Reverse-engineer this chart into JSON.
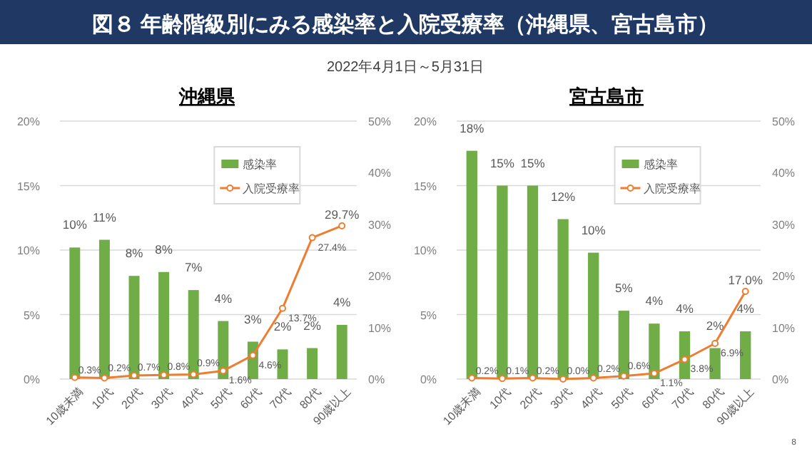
{
  "chart_data": [
    {
      "type": "other",
      "title": "図８ 年齢階級別にみる感染率と入院受療率（沖縄県、宮古島市）",
      "subtitle": "2022年4月1日～5月31日"
    },
    {
      "type": "bar",
      "title": "沖縄県",
      "categories": [
        "10歳未満",
        "10代",
        "20代",
        "30代",
        "40代",
        "50代",
        "60代",
        "70代",
        "80代",
        "90歳以上"
      ],
      "series": [
        {
          "name": "感染率",
          "type": "bar",
          "color": "#70ad47",
          "values": [
            10.2,
            10.8,
            8.0,
            8.3,
            6.9,
            4.5,
            2.9,
            2.3,
            2.4,
            4.2
          ],
          "value_labels": [
            "10%",
            "11%",
            "8%",
            "8%",
            "7%",
            "4%",
            "3%",
            "2%",
            "2%",
            "4%"
          ]
        },
        {
          "name": "入院受療率",
          "type": "line",
          "axis": "y2",
          "color": "#ed7d31",
          "marker": "circle",
          "values": [
            0.3,
            0.2,
            0.7,
            0.8,
            0.9,
            1.6,
            4.6,
            13.7,
            27.4,
            29.7
          ],
          "value_labels": [
            "0.3%",
            "0.2%",
            "0.7%",
            "0.8%",
            "0.9%",
            "1.6%",
            "4.6%",
            "13.7%",
            "27.4%",
            "29.7%"
          ]
        }
      ],
      "ylim": [
        0,
        20
      ],
      "yticks": [
        {
          "value": 0,
          "label": "0%"
        },
        {
          "value": 5,
          "label": "5%"
        },
        {
          "value": 10,
          "label": "10%"
        },
        {
          "value": 15,
          "label": "15%"
        },
        {
          "value": 20,
          "label": "20%"
        }
      ],
      "y2lim": [
        0,
        50
      ],
      "y2ticks": [
        {
          "value": 0,
          "label": "0%"
        },
        {
          "value": 10,
          "label": "10%"
        },
        {
          "value": 20,
          "label": "20%"
        },
        {
          "value": 30,
          "label": "30%"
        },
        {
          "value": 40,
          "label": "40%"
        },
        {
          "value": 50,
          "label": "50%"
        }
      ],
      "grid": "y",
      "legend": "top right"
    },
    {
      "type": "bar",
      "title": "宮古島市",
      "categories": [
        "10歳未満",
        "10代",
        "20代",
        "30代",
        "40代",
        "50代",
        "60代",
        "70代",
        "80代",
        "90歳以上"
      ],
      "series": [
        {
          "name": "感染率",
          "type": "bar",
          "color": "#70ad47",
          "values": [
            17.7,
            15.0,
            15.0,
            12.4,
            9.8,
            5.3,
            4.3,
            3.7,
            2.4,
            3.7
          ],
          "value_labels": [
            "18%",
            "15%",
            "15%",
            "12%",
            "10%",
            "5%",
            "4%",
            "4%",
            "2%",
            "4%"
          ]
        },
        {
          "name": "入院受療率",
          "type": "line",
          "axis": "y2",
          "color": "#ed7d31",
          "marker": "circle",
          "values": [
            0.2,
            0.1,
            0.2,
            0.0,
            0.2,
            0.6,
            1.1,
            3.8,
            6.9,
            17.0
          ],
          "value_labels": [
            "0.2%",
            "0.1%",
            "0.2%",
            "0.0%",
            "0.2%",
            "0.6%",
            "1.1%",
            "3.8%",
            "6.9%",
            "17.0%"
          ]
        }
      ],
      "ylim": [
        0,
        20
      ],
      "yticks": [
        {
          "value": 0,
          "label": "0%"
        },
        {
          "value": 5,
          "label": "5%"
        },
        {
          "value": 10,
          "label": "10%"
        },
        {
          "value": 15,
          "label": "15%"
        },
        {
          "value": 20,
          "label": "20%"
        }
      ],
      "y2lim": [
        0,
        50
      ],
      "y2ticks": [
        {
          "value": 0,
          "label": "0%"
        },
        {
          "value": 10,
          "label": "10%"
        },
        {
          "value": 20,
          "label": "20%"
        },
        {
          "value": 30,
          "label": "30%"
        },
        {
          "value": 40,
          "label": "40%"
        },
        {
          "value": 50,
          "label": "50%"
        }
      ],
      "grid": "y",
      "legend": "top right",
      "annotations": [
        "8"
      ]
    }
  ]
}
